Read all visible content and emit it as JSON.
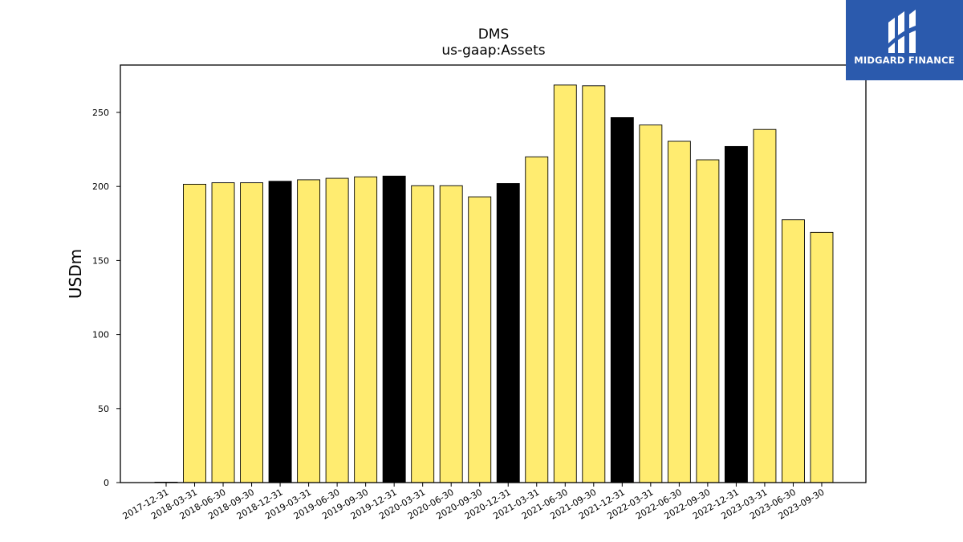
{
  "chart_data": {
    "type": "bar",
    "title": "DMS",
    "subtitle": "us-gaap:Assets",
    "xlabel": "",
    "ylabel": "USDm",
    "ylim": [
      0,
      282
    ],
    "yticks": [
      0,
      50,
      100,
      150,
      200,
      250
    ],
    "grid": false,
    "categories": [
      "2017-12-31",
      "2018-03-31",
      "2018-06-30",
      "2018-09-30",
      "2018-12-31",
      "2019-03-31",
      "2019-06-30",
      "2019-09-30",
      "2019-12-31",
      "2020-03-31",
      "2020-06-30",
      "2020-09-30",
      "2020-12-31",
      "2021-03-31",
      "2021-06-30",
      "2021-09-30",
      "2021-12-31",
      "2022-03-31",
      "2022-06-30",
      "2022-09-30",
      "2022-12-31",
      "2023-03-31",
      "2023-06-30",
      "2023-09-30"
    ],
    "values": [
      0.3,
      201.5,
      202.5,
      202.5,
      203.5,
      204.5,
      205.5,
      206.5,
      207,
      200.5,
      200.5,
      193,
      202,
      220,
      268.5,
      268,
      246.5,
      241.5,
      230.5,
      218,
      227,
      238.5,
      177.5,
      169
    ],
    "colors": {
      "quarter": "#ffec70",
      "year_end": "#000000",
      "edge": "#000000"
    },
    "year_end_categories": [
      "2018-12-31",
      "2019-12-31",
      "2020-12-31",
      "2021-12-31",
      "2022-12-31"
    ]
  },
  "logo": {
    "text": "MIDGARD FINANCE",
    "background": "#2b5aad"
  }
}
